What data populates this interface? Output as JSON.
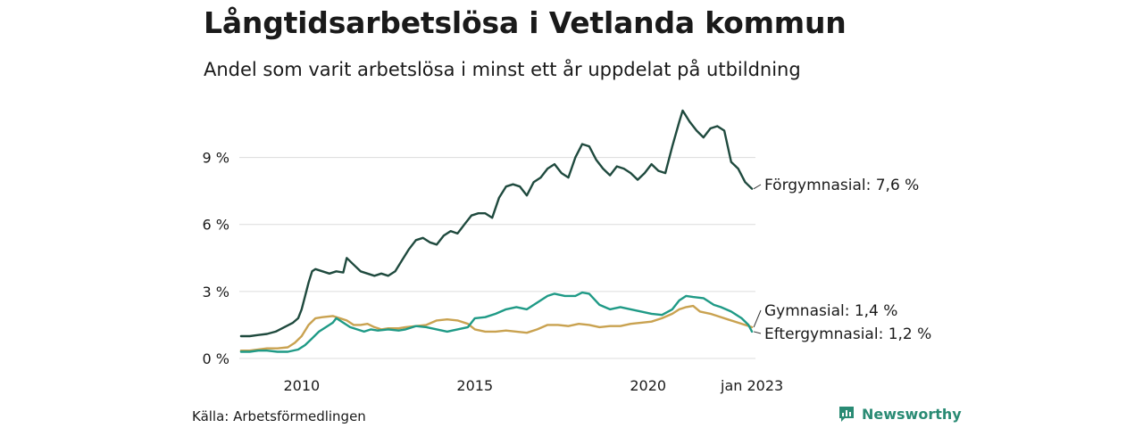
{
  "title": "Långtidsarbetslösa i Vetlanda kommun",
  "subtitle": "Andel som varit arbetslösa i minst ett år uppdelat på utbildning",
  "source": "Källa: Arbetsförmedlingen",
  "brand": {
    "name": "Newsworthy",
    "icon": "newsworthy-logo-icon",
    "color": "#2a8b74"
  },
  "chart_data": {
    "type": "line",
    "x_ticks": [
      "2010",
      "2015",
      "2020",
      "jan 2023"
    ],
    "x_tick_positions": [
      2010,
      2015,
      2020,
      2023
    ],
    "y_ticks": [
      "0 %",
      "3 %",
      "6 %",
      "9 %"
    ],
    "y_tick_values": [
      0,
      3,
      6,
      9
    ],
    "xlim": [
      2008.2,
      2023.1
    ],
    "ylim": [
      0,
      11.3
    ],
    "grid": true,
    "series": [
      {
        "name": "Förgymnasial",
        "end_label": "Förgymnasial: 7,6 %",
        "color": "#1f4a3e",
        "points": [
          [
            2008.25,
            1.0
          ],
          [
            2008.5,
            1.0
          ],
          [
            2008.75,
            1.05
          ],
          [
            2009.0,
            1.1
          ],
          [
            2009.25,
            1.2
          ],
          [
            2009.5,
            1.4
          ],
          [
            2009.75,
            1.6
          ],
          [
            2009.9,
            1.8
          ],
          [
            2010.0,
            2.2
          ],
          [
            2010.1,
            2.8
          ],
          [
            2010.2,
            3.4
          ],
          [
            2010.3,
            3.9
          ],
          [
            2010.4,
            4.0
          ],
          [
            2010.6,
            3.9
          ],
          [
            2010.8,
            3.8
          ],
          [
            2011.0,
            3.9
          ],
          [
            2011.2,
            3.85
          ],
          [
            2011.3,
            4.5
          ],
          [
            2011.5,
            4.2
          ],
          [
            2011.7,
            3.9
          ],
          [
            2011.9,
            3.8
          ],
          [
            2012.1,
            3.7
          ],
          [
            2012.3,
            3.8
          ],
          [
            2012.5,
            3.7
          ],
          [
            2012.7,
            3.9
          ],
          [
            2012.9,
            4.4
          ],
          [
            2013.1,
            4.9
          ],
          [
            2013.3,
            5.3
          ],
          [
            2013.5,
            5.4
          ],
          [
            2013.7,
            5.2
          ],
          [
            2013.9,
            5.1
          ],
          [
            2014.1,
            5.5
          ],
          [
            2014.3,
            5.7
          ],
          [
            2014.5,
            5.6
          ],
          [
            2014.7,
            6.0
          ],
          [
            2014.9,
            6.4
          ],
          [
            2015.1,
            6.5
          ],
          [
            2015.3,
            6.5
          ],
          [
            2015.5,
            6.3
          ],
          [
            2015.7,
            7.2
          ],
          [
            2015.9,
            7.7
          ],
          [
            2016.1,
            7.8
          ],
          [
            2016.3,
            7.7
          ],
          [
            2016.5,
            7.3
          ],
          [
            2016.7,
            7.9
          ],
          [
            2016.9,
            8.1
          ],
          [
            2017.1,
            8.5
          ],
          [
            2017.3,
            8.7
          ],
          [
            2017.5,
            8.3
          ],
          [
            2017.7,
            8.1
          ],
          [
            2017.9,
            9.0
          ],
          [
            2018.1,
            9.6
          ],
          [
            2018.3,
            9.5
          ],
          [
            2018.5,
            8.9
          ],
          [
            2018.7,
            8.5
          ],
          [
            2018.9,
            8.2
          ],
          [
            2019.1,
            8.6
          ],
          [
            2019.3,
            8.5
          ],
          [
            2019.5,
            8.3
          ],
          [
            2019.7,
            8.0
          ],
          [
            2019.9,
            8.3
          ],
          [
            2020.1,
            8.7
          ],
          [
            2020.3,
            8.4
          ],
          [
            2020.5,
            8.3
          ],
          [
            2020.7,
            9.5
          ],
          [
            2020.9,
            10.6
          ],
          [
            2021.0,
            11.1
          ],
          [
            2021.2,
            10.6
          ],
          [
            2021.4,
            10.2
          ],
          [
            2021.6,
            9.9
          ],
          [
            2021.8,
            10.3
          ],
          [
            2022.0,
            10.4
          ],
          [
            2022.2,
            10.2
          ],
          [
            2022.4,
            8.8
          ],
          [
            2022.6,
            8.5
          ],
          [
            2022.8,
            7.9
          ],
          [
            2023.0,
            7.6
          ]
        ]
      },
      {
        "name": "Gymnasial",
        "end_label": "Gymnasial: 1,4 %",
        "color": "#c9a250",
        "points": [
          [
            2008.25,
            0.35
          ],
          [
            2008.5,
            0.35
          ],
          [
            2008.75,
            0.4
          ],
          [
            2009.0,
            0.45
          ],
          [
            2009.3,
            0.45
          ],
          [
            2009.6,
            0.5
          ],
          [
            2009.8,
            0.7
          ],
          [
            2010.0,
            1.0
          ],
          [
            2010.2,
            1.5
          ],
          [
            2010.4,
            1.8
          ],
          [
            2010.6,
            1.85
          ],
          [
            2010.9,
            1.9
          ],
          [
            2011.1,
            1.8
          ],
          [
            2011.3,
            1.7
          ],
          [
            2011.5,
            1.5
          ],
          [
            2011.7,
            1.5
          ],
          [
            2011.9,
            1.55
          ],
          [
            2012.1,
            1.4
          ],
          [
            2012.3,
            1.3
          ],
          [
            2012.5,
            1.35
          ],
          [
            2012.8,
            1.35
          ],
          [
            2013.0,
            1.4
          ],
          [
            2013.3,
            1.45
          ],
          [
            2013.6,
            1.5
          ],
          [
            2013.9,
            1.7
          ],
          [
            2014.2,
            1.75
          ],
          [
            2014.5,
            1.7
          ],
          [
            2014.8,
            1.55
          ],
          [
            2015.0,
            1.3
          ],
          [
            2015.3,
            1.2
          ],
          [
            2015.6,
            1.2
          ],
          [
            2015.9,
            1.25
          ],
          [
            2016.2,
            1.2
          ],
          [
            2016.5,
            1.15
          ],
          [
            2016.8,
            1.3
          ],
          [
            2017.1,
            1.5
          ],
          [
            2017.4,
            1.5
          ],
          [
            2017.7,
            1.45
          ],
          [
            2018.0,
            1.55
          ],
          [
            2018.3,
            1.5
          ],
          [
            2018.6,
            1.4
          ],
          [
            2018.9,
            1.45
          ],
          [
            2019.2,
            1.45
          ],
          [
            2019.5,
            1.55
          ],
          [
            2019.8,
            1.6
          ],
          [
            2020.1,
            1.65
          ],
          [
            2020.4,
            1.8
          ],
          [
            2020.7,
            2.0
          ],
          [
            2020.9,
            2.2
          ],
          [
            2021.1,
            2.3
          ],
          [
            2021.3,
            2.35
          ],
          [
            2021.5,
            2.1
          ],
          [
            2021.8,
            2.0
          ],
          [
            2022.0,
            1.9
          ],
          [
            2022.3,
            1.75
          ],
          [
            2022.6,
            1.6
          ],
          [
            2022.8,
            1.5
          ],
          [
            2023.0,
            1.4
          ]
        ]
      },
      {
        "name": "Eftergymnasial",
        "end_label": "Eftergymnasial: 1,2 %",
        "color": "#1f9a86",
        "points": [
          [
            2008.25,
            0.3
          ],
          [
            2008.5,
            0.3
          ],
          [
            2008.75,
            0.35
          ],
          [
            2009.0,
            0.35
          ],
          [
            2009.3,
            0.3
          ],
          [
            2009.6,
            0.3
          ],
          [
            2009.9,
            0.4
          ],
          [
            2010.1,
            0.6
          ],
          [
            2010.3,
            0.9
          ],
          [
            2010.5,
            1.2
          ],
          [
            2010.7,
            1.4
          ],
          [
            2010.9,
            1.6
          ],
          [
            2011.0,
            1.8
          ],
          [
            2011.2,
            1.6
          ],
          [
            2011.4,
            1.4
          ],
          [
            2011.6,
            1.3
          ],
          [
            2011.8,
            1.2
          ],
          [
            2012.0,
            1.3
          ],
          [
            2012.2,
            1.25
          ],
          [
            2012.5,
            1.3
          ],
          [
            2012.8,
            1.25
          ],
          [
            2013.0,
            1.3
          ],
          [
            2013.3,
            1.45
          ],
          [
            2013.6,
            1.4
          ],
          [
            2013.9,
            1.3
          ],
          [
            2014.2,
            1.2
          ],
          [
            2014.5,
            1.3
          ],
          [
            2014.8,
            1.4
          ],
          [
            2015.0,
            1.8
          ],
          [
            2015.3,
            1.85
          ],
          [
            2015.6,
            2.0
          ],
          [
            2015.9,
            2.2
          ],
          [
            2016.2,
            2.3
          ],
          [
            2016.5,
            2.2
          ],
          [
            2016.8,
            2.5
          ],
          [
            2017.1,
            2.8
          ],
          [
            2017.3,
            2.9
          ],
          [
            2017.6,
            2.8
          ],
          [
            2017.9,
            2.8
          ],
          [
            2018.1,
            2.95
          ],
          [
            2018.3,
            2.9
          ],
          [
            2018.6,
            2.4
          ],
          [
            2018.9,
            2.2
          ],
          [
            2019.2,
            2.3
          ],
          [
            2019.5,
            2.2
          ],
          [
            2019.8,
            2.1
          ],
          [
            2020.1,
            2.0
          ],
          [
            2020.4,
            1.95
          ],
          [
            2020.7,
            2.2
          ],
          [
            2020.9,
            2.6
          ],
          [
            2021.1,
            2.8
          ],
          [
            2021.3,
            2.75
          ],
          [
            2021.6,
            2.7
          ],
          [
            2021.9,
            2.4
          ],
          [
            2022.1,
            2.3
          ],
          [
            2022.4,
            2.1
          ],
          [
            2022.7,
            1.8
          ],
          [
            2022.9,
            1.5
          ],
          [
            2023.0,
            1.2
          ]
        ]
      }
    ]
  }
}
